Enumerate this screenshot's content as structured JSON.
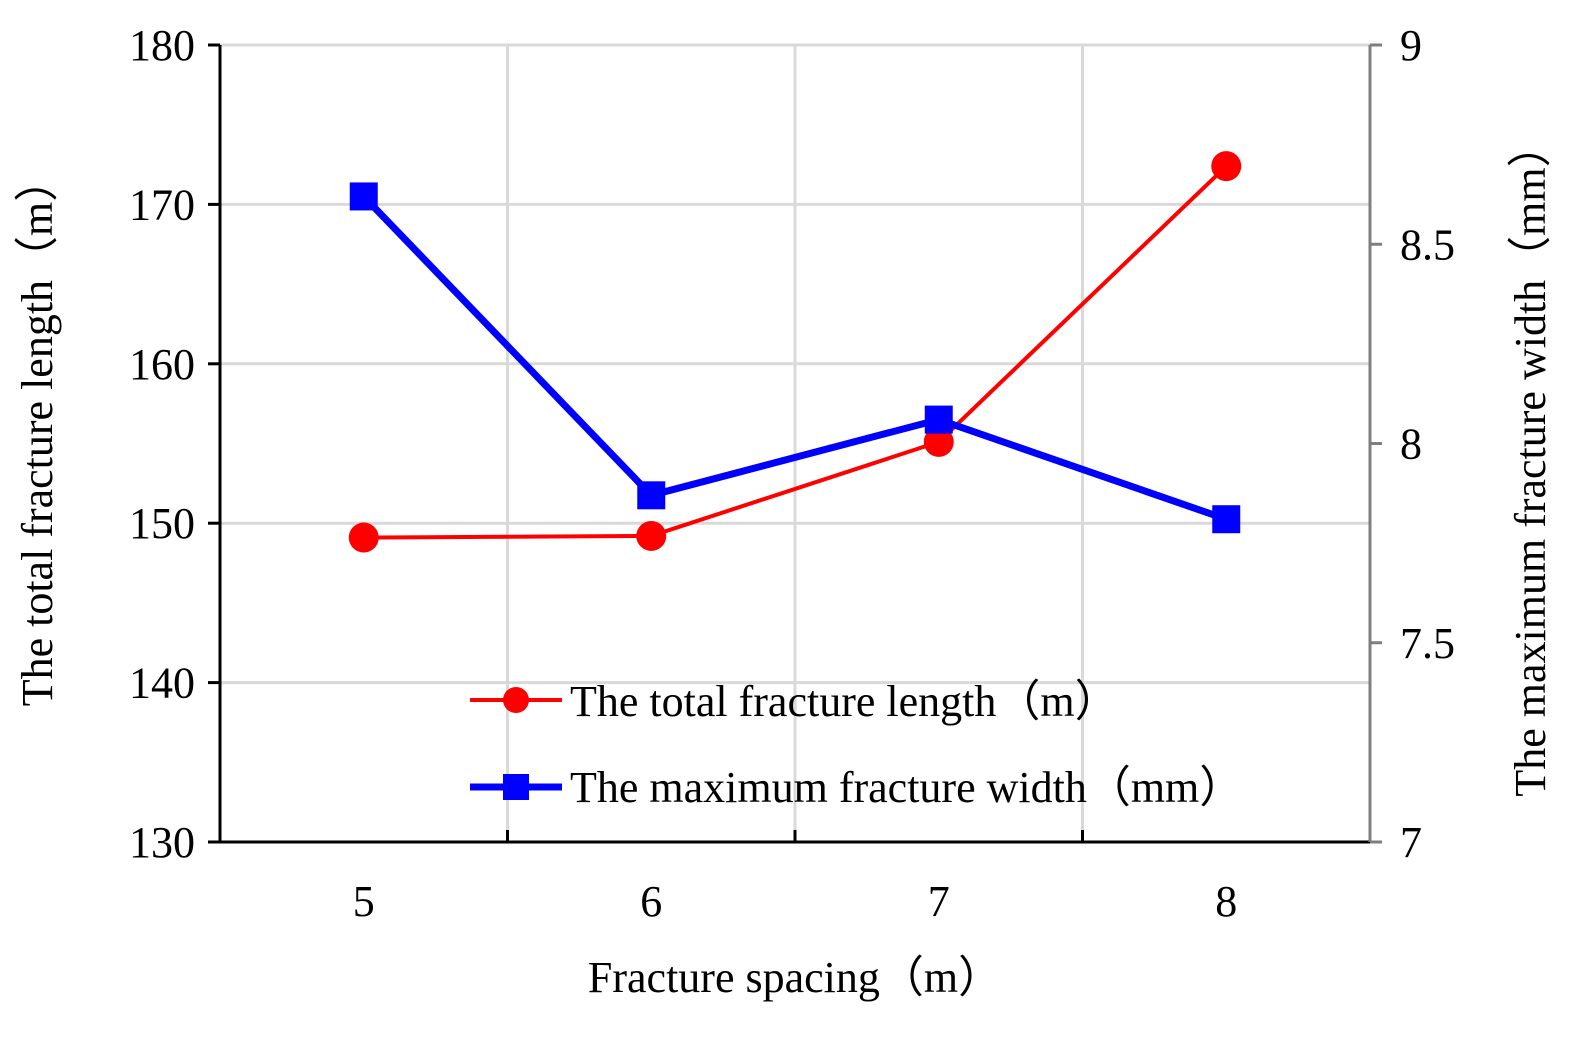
{
  "chart_data": {
    "type": "line",
    "x": [
      5,
      6,
      7,
      8
    ],
    "x_tick_labels": [
      "5",
      "6",
      "7",
      "8"
    ],
    "xlabel": "Fracture spacing（m）",
    "ylabel_left": "The total fracture length（m）",
    "ylabel_right": "The maximum fracture width（mm）",
    "y_left_lim": [
      130,
      180
    ],
    "y_left_ticks": [
      "130",
      "140",
      "150",
      "160",
      "170",
      "180"
    ],
    "y_right_lim": [
      7,
      9
    ],
    "y_right_ticks": [
      "7",
      "7.5",
      "8",
      "8.5",
      "9"
    ],
    "grid": true,
    "legend_position": "bottom-center",
    "series": [
      {
        "name": "The total fracture length（m）",
        "axis": "left",
        "marker": "circle",
        "color": "#ff0000",
        "values": [
          149.1,
          149.2,
          155.1,
          172.4
        ]
      },
      {
        "name": "The maximum fracture width（mm）",
        "axis": "right",
        "marker": "square",
        "color": "#0000ff",
        "values": [
          8.62,
          7.87,
          8.06,
          7.81
        ]
      }
    ]
  }
}
